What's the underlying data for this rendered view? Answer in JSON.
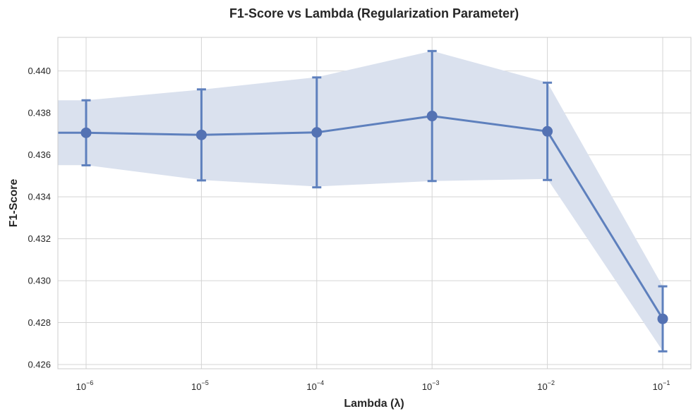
{
  "chart_data": {
    "type": "line",
    "title": "F1-Score vs Lambda (Regularization Parameter)",
    "xlabel": "Lambda (λ)",
    "ylabel": "F1-Score",
    "x_scale": "log",
    "x_tick_labels": [
      {
        "base": "10",
        "exp": "−6"
      },
      {
        "base": "10",
        "exp": "−5"
      },
      {
        "base": "10",
        "exp": "−4"
      },
      {
        "base": "10",
        "exp": "−3"
      },
      {
        "base": "10",
        "exp": "−2"
      },
      {
        "base": "10",
        "exp": "−1"
      }
    ],
    "y_ticks": [
      "0.426",
      "0.428",
      "0.430",
      "0.432",
      "0.434",
      "0.436",
      "0.438",
      "0.440"
    ],
    "ylim": [
      0.4258,
      0.4416
    ],
    "xlim": [
      1e-06,
      0.1
    ],
    "grid": true,
    "series": [
      {
        "x": [
          1e-06,
          1e-05,
          0.0001,
          0.001,
          0.01,
          0.1
        ],
        "y": [
          0.43705,
          0.43695,
          0.43707,
          0.43785,
          0.43712,
          0.42818
        ],
        "err": [
          0.00155,
          0.00217,
          0.00262,
          0.0031,
          0.00232,
          0.00155
        ],
        "band_lower": [
          0.43551,
          0.4348,
          0.43449,
          0.43475,
          0.43485,
          0.42665
        ],
        "band_upper": [
          0.4386,
          0.43911,
          0.4397,
          0.44095,
          0.43945,
          0.42973
        ]
      }
    ],
    "colors": {
      "line": "#5e80bd",
      "marker": "#5472b3",
      "band": "#dae1ee",
      "grid": "#d4d4d4",
      "spine": "#cccccc"
    }
  }
}
